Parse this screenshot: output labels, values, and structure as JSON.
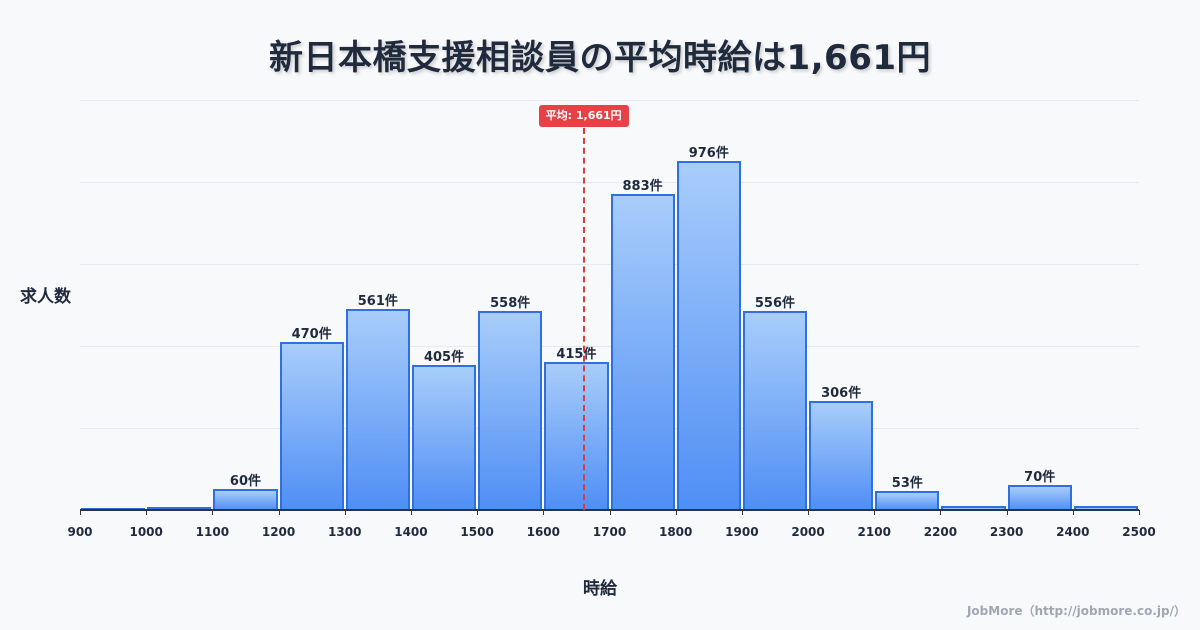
{
  "title": "新日本橋支援相談員の平均時給は1,661円",
  "ylabel": "求人数",
  "xlabel": "時給",
  "credit": "JobMore（http://jobmore.co.jp/）",
  "average": {
    "label": "平均: 1,661円",
    "value": 1661,
    "color": "#e54147"
  },
  "colors": {
    "bar_top": "#a8cdfa",
    "bar_bottom": "#4f8ef5",
    "bar_border": "#2f6fe0",
    "text": "#1f2a3d",
    "avg_line": "#e0393e"
  },
  "chart_data": {
    "type": "bar",
    "title": "新日本橋支援相談員の平均時給は1,661円",
    "xlabel": "時給",
    "ylabel": "求人数",
    "x_ticks": [
      "900",
      "1000",
      "1100",
      "1200",
      "1300",
      "1400",
      "1500",
      "1600",
      "1700",
      "1800",
      "1900",
      "2000",
      "2100",
      "2200",
      "2300",
      "2400",
      "2500"
    ],
    "bins": [
      {
        "range": [
          900,
          1000
        ],
        "value": 5,
        "label": ""
      },
      {
        "range": [
          1000,
          1100
        ],
        "value": 8,
        "label": ""
      },
      {
        "range": [
          1100,
          1200
        ],
        "value": 60,
        "label": "60件"
      },
      {
        "range": [
          1200,
          1300
        ],
        "value": 470,
        "label": "470件"
      },
      {
        "range": [
          1300,
          1400
        ],
        "value": 561,
        "label": "561件"
      },
      {
        "range": [
          1400,
          1500
        ],
        "value": 405,
        "label": "405件"
      },
      {
        "range": [
          1500,
          1600
        ],
        "value": 558,
        "label": "558件"
      },
      {
        "range": [
          1600,
          1700
        ],
        "value": 415,
        "label": "415件"
      },
      {
        "range": [
          1700,
          1800
        ],
        "value": 883,
        "label": "883件"
      },
      {
        "range": [
          1800,
          1900
        ],
        "value": 976,
        "label": "976件"
      },
      {
        "range": [
          1900,
          2000
        ],
        "value": 556,
        "label": "556件"
      },
      {
        "range": [
          2000,
          2100
        ],
        "value": 306,
        "label": "306件"
      },
      {
        "range": [
          2100,
          2200
        ],
        "value": 53,
        "label": "53件"
      },
      {
        "range": [
          2200,
          2300
        ],
        "value": 10,
        "label": ""
      },
      {
        "range": [
          2300,
          2400
        ],
        "value": 70,
        "label": "70件"
      },
      {
        "range": [
          2400,
          2500
        ],
        "value": 10,
        "label": ""
      }
    ],
    "xlim": [
      900,
      2500
    ],
    "ylim": [
      0,
      1147
    ],
    "grid": true,
    "annotations": [
      {
        "type": "vline",
        "x": 1661,
        "label": "平均: 1,661円"
      }
    ]
  }
}
